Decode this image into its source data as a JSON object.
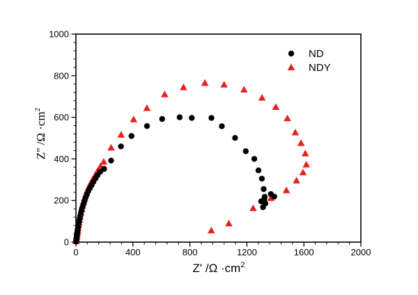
{
  "chart_data": {
    "type": "scatter",
    "title": "",
    "xlabel": "Z' /Ω ·cm²",
    "ylabel": "Z'' /Ω ·cm²",
    "xlabel_parts": {
      "base": "Z' /Ω ·cm",
      "sup": "2"
    },
    "ylabel_parts": {
      "base": "Z'' /Ω ·cm",
      "sup": "2"
    },
    "xlim": [
      0,
      2000
    ],
    "ylim": [
      0,
      1000
    ],
    "xticks": [
      "0",
      "400",
      "800",
      "1200",
      "1600",
      "2000"
    ],
    "xtick_values": [
      0,
      400,
      800,
      1200,
      1600,
      2000
    ],
    "yticks": [
      "0",
      "200",
      "400",
      "600",
      "800",
      "1000"
    ],
    "ytick_values": [
      0,
      200,
      400,
      600,
      800,
      1000
    ],
    "x_minor_step": 80,
    "y_minor_step": 40,
    "grid": false,
    "frame": "full-box",
    "legend_position": "upper right inside",
    "axis_color": "#000000",
    "background_color": "#ffffff",
    "series": [
      {
        "name": "ND",
        "marker": "circle",
        "color": "#000000",
        "points": [
          [
            1,
            3
          ],
          [
            2,
            8
          ],
          [
            3,
            14
          ],
          [
            4,
            20
          ],
          [
            6,
            28
          ],
          [
            7,
            36
          ],
          [
            9,
            45
          ],
          [
            11,
            54
          ],
          [
            13,
            64
          ],
          [
            16,
            75
          ],
          [
            19,
            87
          ],
          [
            22,
            99
          ],
          [
            26,
            112
          ],
          [
            30,
            126
          ],
          [
            35,
            140
          ],
          [
            40,
            154
          ],
          [
            46,
            168
          ],
          [
            53,
            183
          ],
          [
            60,
            198
          ],
          [
            68,
            214
          ],
          [
            77,
            230
          ],
          [
            87,
            246
          ],
          [
            98,
            260
          ],
          [
            110,
            274
          ],
          [
            123,
            290
          ],
          [
            137,
            306
          ],
          [
            152,
            322
          ],
          [
            170,
            338
          ],
          [
            198,
            352
          ],
          [
            247,
            392
          ],
          [
            316,
            460
          ],
          [
            390,
            510
          ],
          [
            499,
            558
          ],
          [
            605,
            592
          ],
          [
            728,
            600
          ],
          [
            813,
            597
          ],
          [
            951,
            597
          ],
          [
            1024,
            557
          ],
          [
            1117,
            501
          ],
          [
            1192,
            437
          ],
          [
            1252,
            400
          ],
          [
            1281,
            345
          ],
          [
            1305,
            305
          ],
          [
            1318,
            255
          ],
          [
            1325,
            218
          ],
          [
            1330,
            186
          ],
          [
            1313,
            168
          ],
          [
            1300,
            196
          ],
          [
            1322,
            207
          ],
          [
            1368,
            231
          ],
          [
            1392,
            219
          ]
        ]
      },
      {
        "name": "NDY",
        "marker": "triangle-up",
        "color": "#e8201e",
        "points": [
          [
            1,
            4
          ],
          [
            2,
            9
          ],
          [
            3,
            15
          ],
          [
            5,
            22
          ],
          [
            6,
            29
          ],
          [
            8,
            38
          ],
          [
            10,
            47
          ],
          [
            12,
            56
          ],
          [
            15,
            68
          ],
          [
            18,
            81
          ],
          [
            21,
            94
          ],
          [
            25,
            108
          ],
          [
            29,
            123
          ],
          [
            34,
            140
          ],
          [
            40,
            158
          ],
          [
            46,
            176
          ],
          [
            53,
            194
          ],
          [
            61,
            212
          ],
          [
            70,
            230
          ],
          [
            80,
            248
          ],
          [
            91,
            266
          ],
          [
            103,
            283
          ],
          [
            116,
            300
          ],
          [
            133,
            320
          ],
          [
            150,
            340
          ],
          [
            172,
            364
          ],
          [
            195,
            386
          ],
          [
            247,
            454
          ],
          [
            317,
            516
          ],
          [
            405,
            590
          ],
          [
            498,
            644
          ],
          [
            623,
            710
          ],
          [
            755,
            744
          ],
          [
            905,
            765
          ],
          [
            1040,
            757
          ],
          [
            1180,
            733
          ],
          [
            1306,
            694
          ],
          [
            1403,
            649
          ],
          [
            1484,
            595
          ],
          [
            1540,
            527
          ],
          [
            1580,
            476
          ],
          [
            1610,
            426
          ],
          [
            1617,
            373
          ],
          [
            1594,
            335
          ],
          [
            1548,
            296
          ],
          [
            1477,
            249
          ],
          [
            1369,
            212
          ],
          [
            1244,
            163
          ],
          [
            1073,
            90
          ],
          [
            950,
            56
          ]
        ]
      }
    ]
  }
}
